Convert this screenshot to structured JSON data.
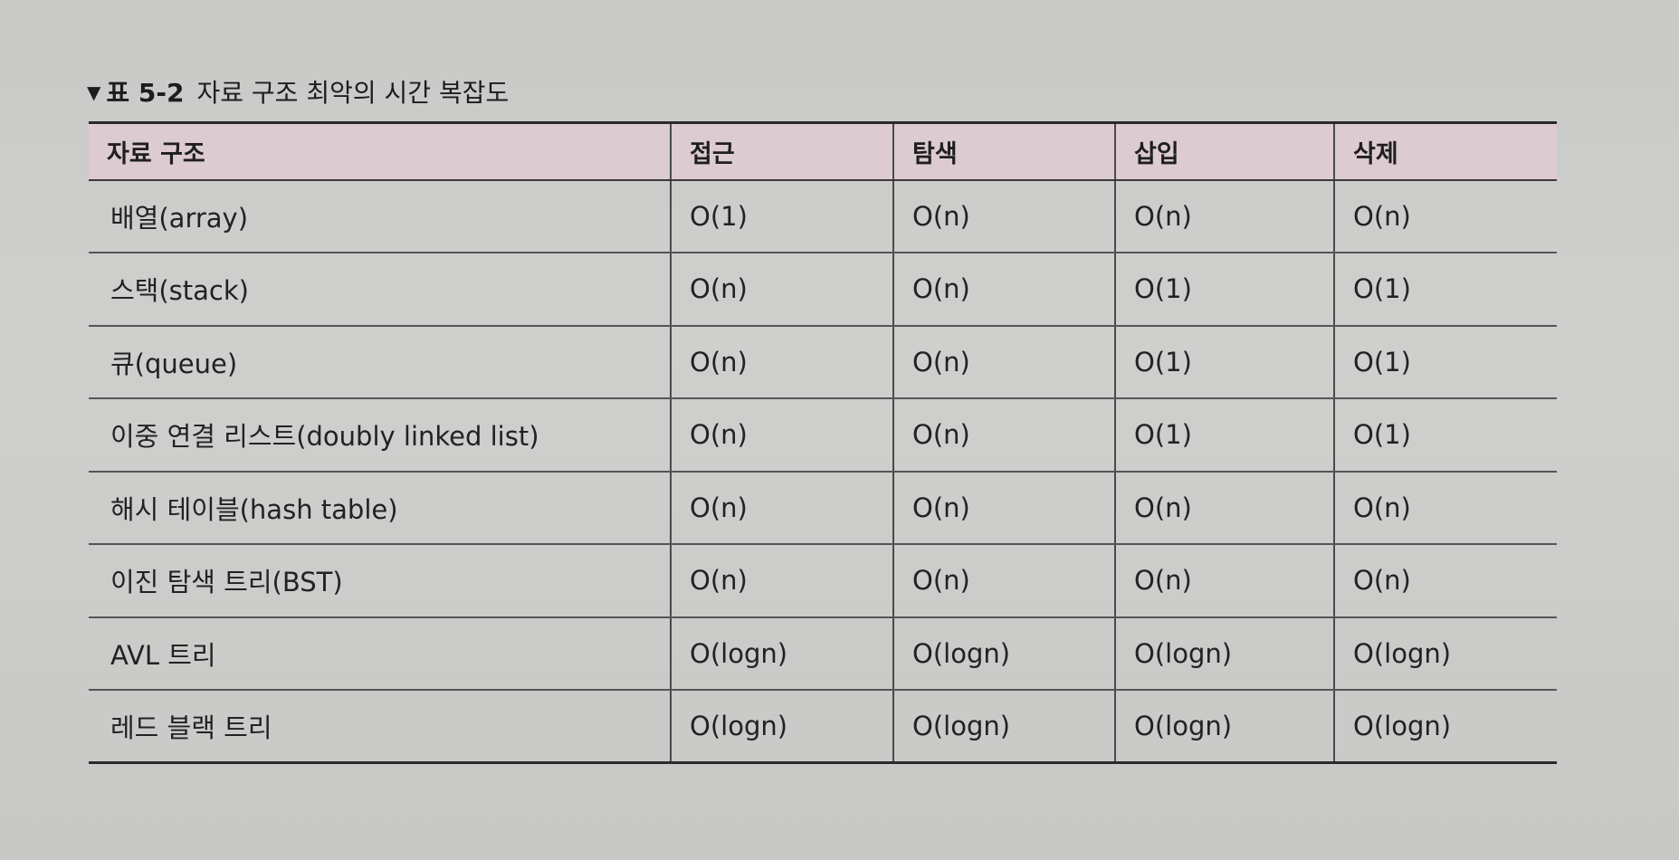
{
  "caption": {
    "marker": "▼",
    "number": "표 5-2",
    "title": "자료 구조 최악의 시간 복잡도"
  },
  "table": {
    "headers": [
      "자료 구조",
      "접근",
      "탐색",
      "삽입",
      "삭제"
    ],
    "rows": [
      [
        "배열(array)",
        "O(1)",
        "O(n)",
        "O(n)",
        "O(n)"
      ],
      [
        "스택(stack)",
        "O(n)",
        "O(n)",
        "O(1)",
        "O(1)"
      ],
      [
        "큐(queue)",
        "O(n)",
        "O(n)",
        "O(1)",
        "O(1)"
      ],
      [
        "이중 연결 리스트(doubly linked list)",
        "O(n)",
        "O(n)",
        "O(1)",
        "O(1)"
      ],
      [
        "해시 테이블(hash table)",
        "O(n)",
        "O(n)",
        "O(n)",
        "O(n)"
      ],
      [
        "이진 탐색 트리(BST)",
        "O(n)",
        "O(n)",
        "O(n)",
        "O(n)"
      ],
      [
        "AVL 트리",
        "O(logn)",
        "O(logn)",
        "O(logn)",
        "O(logn)"
      ],
      [
        "레드 블랙 트리",
        "O(logn)",
        "O(logn)",
        "O(logn)",
        "O(logn)"
      ]
    ]
  },
  "colors": {
    "header_background": "#dccbd0",
    "paper": "#cbcbc9"
  }
}
